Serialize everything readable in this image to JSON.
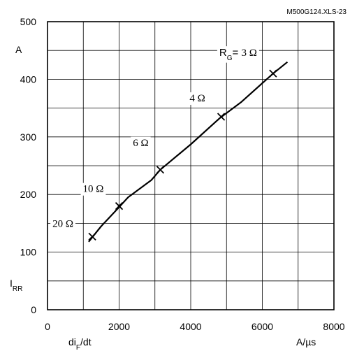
{
  "chart_data": {
    "type": "line",
    "reference": "M500G124.XLS-23",
    "y_unit": "A",
    "y_symbol": "I",
    "y_symbol_sub": "RR",
    "x_symbol": "di",
    "x_symbol_sub": "F",
    "x_symbol_suffix": "/dt",
    "x_unit": "A/µs",
    "xlim": [
      0,
      8000
    ],
    "ylim": [
      0,
      500
    ],
    "x_ticks": [
      0,
      2000,
      4000,
      6000,
      8000
    ],
    "y_ticks": [
      0,
      100,
      200,
      300,
      400,
      500
    ],
    "x_tick_labels": [
      "0",
      "2000",
      "4000",
      "6000",
      "8000"
    ],
    "y_tick_labels": [
      "0",
      "100",
      "200",
      "300",
      "400",
      "500"
    ],
    "grid": true,
    "series": [
      {
        "x": [
          1150,
          1500,
          2000,
          2250,
          2900,
          3150,
          4000,
          4800,
          5400,
          6300,
          6700
        ],
        "y": [
          118,
          145,
          178,
          195,
          225,
          243,
          287,
          332,
          360,
          410,
          430
        ]
      }
    ],
    "markers": [
      {
        "x": 1250,
        "y": 127,
        "label": "20 Ω"
      },
      {
        "x": 2000,
        "y": 180,
        "label": "10 Ω"
      },
      {
        "x": 3150,
        "y": 243,
        "label": "6 Ω"
      },
      {
        "x": 4850,
        "y": 335,
        "label": "4 Ω"
      },
      {
        "x": 6300,
        "y": 410,
        "label": "3 Ω",
        "prefix": "R",
        "prefix_sub": "G",
        "prefix_suffix": "= "
      }
    ]
  }
}
